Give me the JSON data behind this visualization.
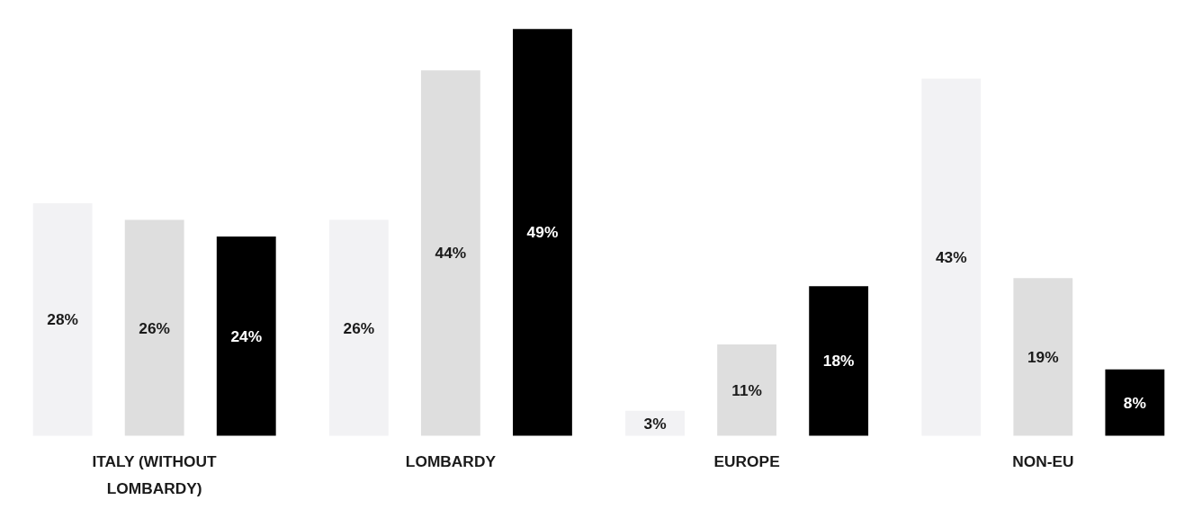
{
  "chart_data": {
    "type": "bar",
    "categories": [
      "ITALY (WITHOUT LOMBARDY)",
      "LOMBARDY",
      "EUROPE",
      "NON-EU"
    ],
    "series": [
      {
        "color": "#f2f2f4",
        "values": [
          28,
          26,
          3,
          43
        ],
        "value_labels": [
          "28%",
          "26%",
          "3%",
          "43%"
        ]
      },
      {
        "color": "#dedede",
        "values": [
          26,
          44,
          11,
          19
        ],
        "value_labels": [
          "26%",
          "44%",
          "11%",
          "19%"
        ]
      },
      {
        "color": "#000000",
        "values": [
          24,
          49,
          18,
          8
        ],
        "value_labels": [
          "24%",
          "49%",
          "18%",
          "8%"
        ]
      }
    ]
  }
}
